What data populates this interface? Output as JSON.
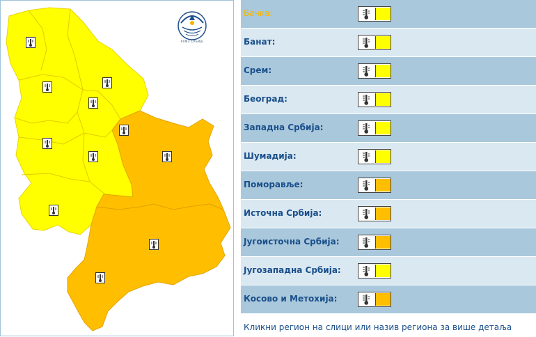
{
  "colors": {
    "yellow": "#ffff00",
    "orange": "#ffbf00",
    "row_dark": "#a9c8dc",
    "row_light": "#dae8f1",
    "text_blue": "#1a4f8a"
  },
  "regions": [
    {
      "name": "Бачка:",
      "warning": "yellow",
      "icon": "thermometer-icon"
    },
    {
      "name": "Банат:",
      "warning": "yellow",
      "icon": "thermometer-icon"
    },
    {
      "name": "Срем:",
      "warning": "yellow",
      "icon": "thermometer-icon"
    },
    {
      "name": "Београд:",
      "warning": "yellow",
      "icon": "thermometer-icon"
    },
    {
      "name": "Западна Србија:",
      "warning": "yellow",
      "icon": "thermometer-icon"
    },
    {
      "name": "Шумадија:",
      "warning": "yellow",
      "icon": "thermometer-icon"
    },
    {
      "name": "Поморавље:",
      "warning": "orange",
      "icon": "thermometer-icon"
    },
    {
      "name": "Источна Србија:",
      "warning": "orange",
      "icon": "thermometer-icon"
    },
    {
      "name": "Југоисточна Србија:",
      "warning": "orange",
      "icon": "thermometer-icon"
    },
    {
      "name": "Југозападна Србија:",
      "warning": "yellow",
      "icon": "thermometer-icon"
    },
    {
      "name": "Косово и Метохија:",
      "warning": "orange",
      "icon": "thermometer-icon"
    }
  ],
  "hint": "Кликни регион на слици или назив региона за више детаља",
  "logo": {
    "caption": "РХМЗ СРБИЈЕ",
    "icon": "rhmz-logo-icon"
  }
}
